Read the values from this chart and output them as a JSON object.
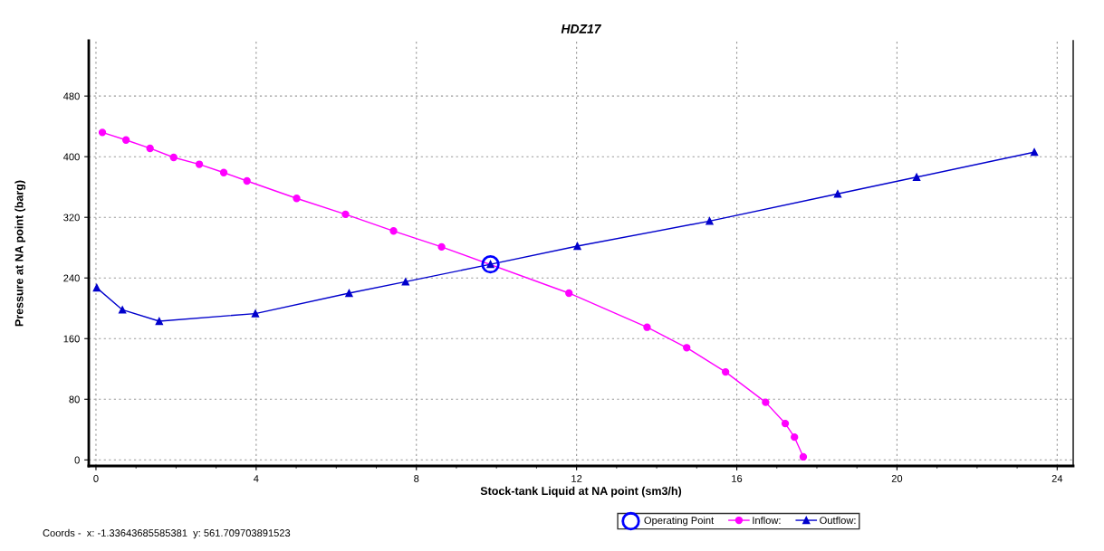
{
  "chart_data": {
    "type": "line",
    "title": "HDZ17",
    "xlabel": "Stock-tank Liquid at NA point (sm3/h)",
    "ylabel": "Pressure at NA point (barg)",
    "xlim": [
      -0.18,
      24.4
    ],
    "xticks": [
      0,
      4,
      8,
      12,
      16,
      20,
      24
    ],
    "ylim": [
      -8,
      553
    ],
    "yticks": [
      0,
      80,
      160,
      240,
      320,
      400,
      480
    ],
    "grid": true,
    "legend": "bottom",
    "line_style": "solid",
    "series": [
      {
        "name": "Operating Point",
        "type": "scatter",
        "marker": "circle",
        "color": "#0000ff",
        "x": [
          9.85
        ],
        "values": [
          258
        ]
      },
      {
        "name": "Inflow:",
        "marker": "circle",
        "color": "#ff00ff",
        "x": [
          0.16,
          0.75,
          1.35,
          1.94,
          2.58,
          3.19,
          3.77,
          5.01,
          6.23,
          7.43,
          8.63,
          11.81,
          13.76,
          14.75,
          15.72,
          16.72,
          17.21,
          17.44,
          17.66
        ],
        "values": [
          432,
          422,
          411,
          399,
          390,
          379,
          368,
          345,
          324,
          302,
          281,
          220,
          175,
          148,
          116,
          76,
          48,
          30,
          4
        ]
      },
      {
        "name": "Outflow:",
        "marker": "triangle",
        "color": "#0000cc",
        "x": [
          0.02,
          0.66,
          1.58,
          3.98,
          6.32,
          7.73,
          9.85,
          12.02,
          15.32,
          18.52,
          20.49,
          23.43
        ],
        "values": [
          227,
          198,
          183,
          193,
          220,
          235,
          258,
          282,
          315,
          351,
          373,
          406
        ]
      }
    ],
    "annotations": [
      "Coords -  x: -1.33643685585381  y: 561.709703891523"
    ]
  }
}
